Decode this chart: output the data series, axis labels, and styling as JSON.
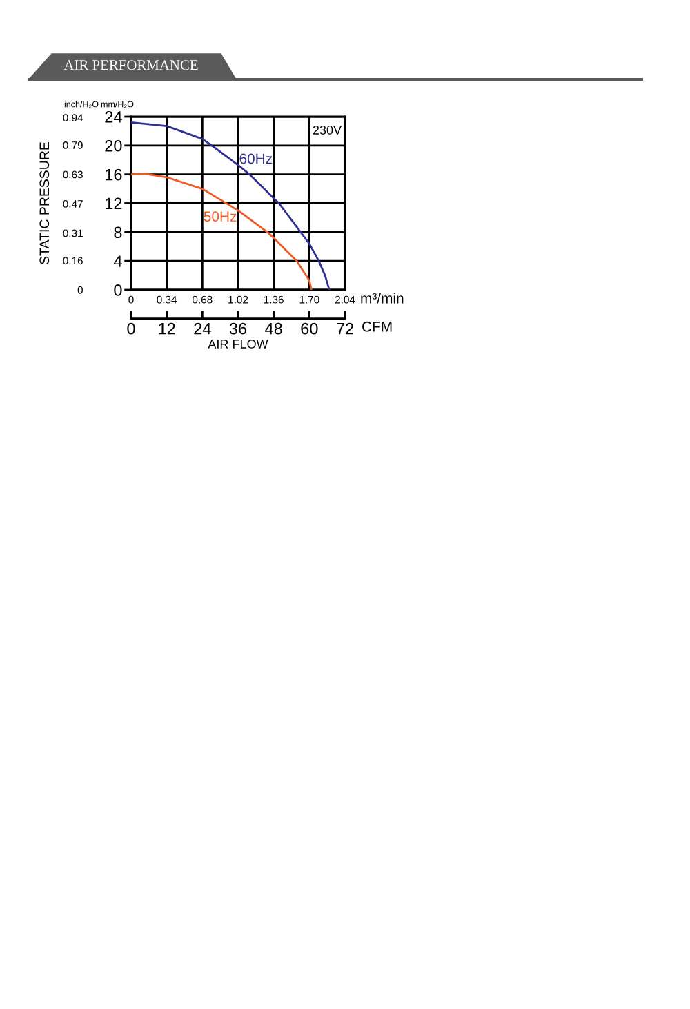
{
  "chart_data": {
    "type": "line",
    "title": "AIR PERFORMANCE",
    "xlabel": "AIR FLOW",
    "y2label": "STATIC PRESSURE",
    "annotations": [
      "230V",
      "mm/H₂O",
      "inch/H₂O",
      "m³/min",
      "CFM"
    ],
    "series": [
      {
        "name": "60Hz",
        "color": "#2e3192",
        "x": [
          0,
          0.34,
          0.68,
          0.77,
          1.02,
          1.13,
          1.36,
          1.41,
          1.7,
          1.79,
          1.85,
          1.89
        ],
        "values": [
          23.2,
          22.7,
          20.9,
          20,
          17.3,
          16,
          12.7,
          12,
          6.4,
          4,
          2,
          0
        ]
      },
      {
        "name": "50Hz",
        "color": "#f05a22",
        "x": [
          0,
          0.13,
          0.34,
          0.68,
          0.93,
          1.02,
          1.3,
          1.36,
          1.58,
          1.7,
          1.72
        ],
        "values": [
          16,
          16.1,
          15.6,
          14,
          11.8,
          11,
          8,
          7.2,
          4,
          1.3,
          0
        ]
      }
    ],
    "xlim": [
      0,
      2.04
    ],
    "xticks": [
      0,
      0.34,
      0.68,
      1.02,
      1.36,
      {
        "value": 1.7,
        "label": "1.70"
      },
      2.04
    ],
    "ylim": [
      0,
      24
    ],
    "yticks": [
      0,
      4,
      8,
      12,
      16,
      20,
      24
    ],
    "y2lim": [
      0,
      0.945
    ],
    "y2ticks": [
      0,
      0.16,
      0.31,
      0.47,
      0.63,
      0.79,
      0.94
    ],
    "x2lim": [
      0,
      72
    ],
    "x2ticks": [
      0,
      12,
      24,
      36,
      48,
      60,
      72
    ],
    "grid": true,
    "marker": "none",
    "line_style": "solid"
  }
}
